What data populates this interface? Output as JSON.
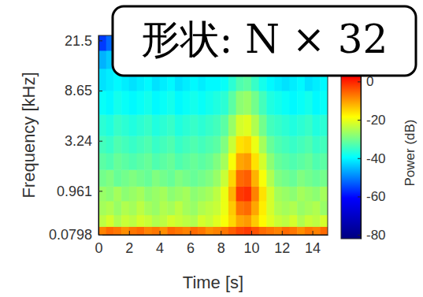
{
  "chart_data": {
    "type": "heatmap",
    "annotation": "形状: N × 32",
    "x_label": "Time [s]",
    "y_label": "Frequency [kHz]",
    "xlim": [
      0,
      15
    ],
    "xticks": [
      0,
      2,
      4,
      6,
      8,
      10,
      12,
      14
    ],
    "ylim": [
      0.0798,
      23.5
    ],
    "yticks": [
      0.0798,
      0.961,
      3.24,
      8.65,
      21.5
    ],
    "x_edges": [
      0,
      0.5,
      1,
      1.5,
      2,
      2.5,
      3,
      3.5,
      4,
      4.5,
      5,
      5.5,
      6,
      6.5,
      7,
      7.5,
      8,
      8.5,
      9,
      9.5,
      10,
      10.5,
      11,
      11.5,
      12,
      12.5,
      13,
      13.5,
      14,
      14.5,
      15
    ],
    "y_edges": [
      0.0798,
      0.2,
      0.4,
      0.7,
      1.1,
      1.7,
      2.5,
      3.6,
      5.5,
      8.65,
      13,
      18,
      23.5
    ],
    "cells": [
      [
        -8,
        -6,
        -7,
        -9,
        -7,
        -6,
        -8,
        -7,
        -9,
        -6,
        -7,
        -8,
        -6,
        -7,
        -9,
        -8,
        -7,
        -5,
        -3,
        -2,
        -4,
        -6,
        -7,
        -8,
        -6,
        -7,
        -9,
        -7,
        -8,
        -6
      ],
      [
        -24,
        -22,
        -25,
        -23,
        -24,
        -22,
        -23,
        -25,
        -24,
        -22,
        -23,
        -24,
        -25,
        -22,
        -23,
        -21,
        -19,
        -15,
        -11,
        -10,
        -14,
        -18,
        -21,
        -23,
        -24,
        -22,
        -25,
        -23,
        -24,
        -22
      ],
      [
        -26,
        -25,
        -27,
        -25,
        -26,
        -24,
        -26,
        -27,
        -25,
        -26,
        -24,
        -26,
        -27,
        -25,
        -24,
        -23,
        -20,
        -14,
        -7,
        -6,
        -11,
        -17,
        -22,
        -25,
        -26,
        -25,
        -27,
        -26,
        -25,
        -27
      ],
      [
        -27,
        -28,
        -26,
        -28,
        -27,
        -26,
        -28,
        -27,
        -26,
        -28,
        -27,
        -26,
        -28,
        -27,
        -26,
        -24,
        -20,
        -12,
        -2,
        -1,
        -8,
        -16,
        -22,
        -26,
        -27,
        -28,
        -26,
        -27,
        -28,
        -26
      ],
      [
        -30,
        -29,
        -31,
        -30,
        -29,
        -30,
        -31,
        -29,
        -30,
        -31,
        -29,
        -30,
        -31,
        -30,
        -29,
        -27,
        -23,
        -15,
        -6,
        -5,
        -12,
        -19,
        -25,
        -29,
        -30,
        -31,
        -29,
        -30,
        -31,
        -30
      ],
      [
        -32,
        -33,
        -31,
        -32,
        -33,
        -32,
        -31,
        -33,
        -32,
        -31,
        -33,
        -32,
        -31,
        -32,
        -31,
        -29,
        -26,
        -19,
        -11,
        -10,
        -16,
        -22,
        -28,
        -31,
        -32,
        -33,
        -32,
        -31,
        -33,
        -32
      ],
      [
        -34,
        -35,
        -33,
        -34,
        -35,
        -34,
        -33,
        -35,
        -34,
        -33,
        -35,
        -34,
        -33,
        -34,
        -33,
        -32,
        -29,
        -23,
        -16,
        -15,
        -20,
        -26,
        -31,
        -33,
        -34,
        -35,
        -34,
        -33,
        -35,
        -34
      ],
      [
        -36,
        -37,
        -35,
        -36,
        -37,
        -36,
        -35,
        -37,
        -36,
        -35,
        -37,
        -36,
        -35,
        -36,
        -35,
        -34,
        -32,
        -27,
        -22,
        -21,
        -25,
        -30,
        -34,
        -35,
        -36,
        -37,
        -36,
        -35,
        -37,
        -36
      ],
      [
        -39,
        -40,
        -38,
        -39,
        -40,
        -39,
        -38,
        -40,
        -39,
        -38,
        -40,
        -39,
        -38,
        -39,
        -38,
        -37,
        -36,
        -32,
        -28,
        -27,
        -30,
        -34,
        -37,
        -38,
        -39,
        -40,
        -39,
        -38,
        -40,
        -39
      ],
      [
        -42,
        -41,
        -40,
        -41,
        -42,
        -41,
        -40,
        -42,
        -41,
        -40,
        -42,
        -41,
        -40,
        -41,
        -40,
        -40,
        -39,
        -36,
        -33,
        -32,
        -35,
        -38,
        -40,
        -41,
        -42,
        -41,
        -40,
        -42,
        -41,
        -40
      ],
      [
        -46,
        -44,
        -43,
        -44,
        -43,
        -44,
        -43,
        -45,
        -44,
        -43,
        -44,
        -43,
        -44,
        -43,
        -42,
        -42,
        -41,
        -39,
        -37,
        -36,
        -38,
        -40,
        -42,
        -43,
        -44,
        -43,
        -42,
        -44,
        -43,
        -42
      ],
      [
        -56,
        -52,
        -47,
        -46,
        -47,
        -46,
        -45,
        -47,
        -46,
        -45,
        -46,
        -47,
        -45,
        -46,
        -45,
        -44,
        -44,
        -42,
        -40,
        -39,
        -41,
        -43,
        -44,
        -45,
        -46,
        -45,
        -44,
        -46,
        -45,
        -44
      ]
    ],
    "colorbar": {
      "label": "Power (dB)",
      "clim": [
        -82,
        24
      ],
      "ticks": [
        0,
        -20,
        -40,
        -60,
        -80
      ]
    }
  }
}
